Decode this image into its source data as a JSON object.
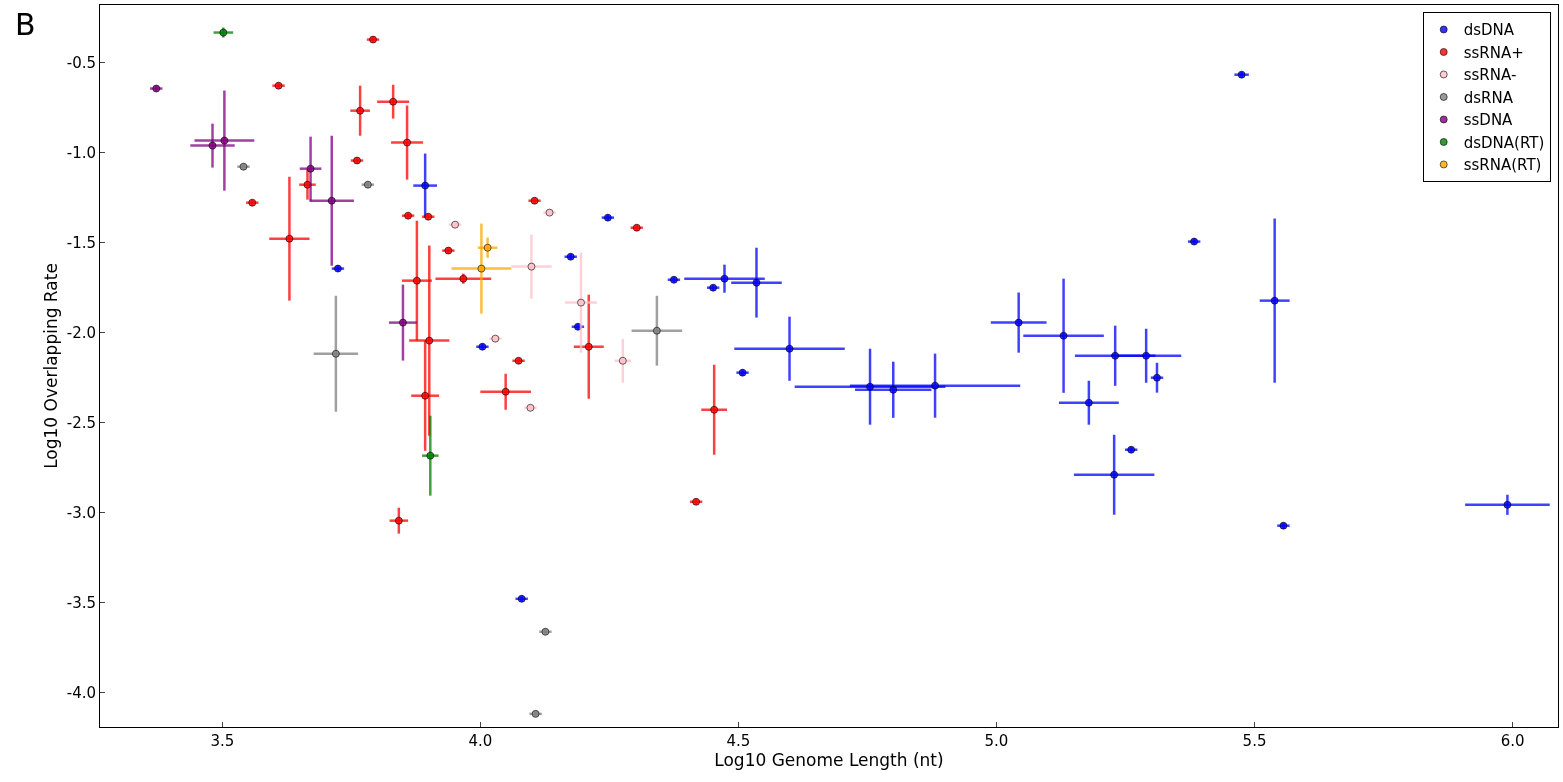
{
  "chart_data": {
    "type": "scatter",
    "xlabel": "Log10 Genome Length (nt)",
    "ylabel": "Log10 Overlapping Rate",
    "annotations": [
      "B"
    ],
    "xlim": [
      3.263,
      6.088
    ],
    "ylim": [
      -4.19,
      -0.18
    ],
    "xticks": [
      3.5,
      {
        "value": 4,
        "label": "4.0"
      },
      4.5,
      {
        "value": 5,
        "label": "5.0"
      },
      5.5,
      {
        "value": 6,
        "label": "6.0"
      }
    ],
    "yticks": [
      {
        "value": -4,
        "label": "-4.0"
      },
      -3.5,
      {
        "value": -3,
        "label": "-3.0"
      },
      -2.5,
      {
        "value": -2,
        "label": "-2.0"
      },
      -1.5,
      {
        "value": -1,
        "label": "-1.0"
      },
      -0.5
    ],
    "legend": "top right",
    "marker": "circle",
    "series": [
      {
        "name": "dsDNA",
        "color": "#0000ff",
        "x": [
          5.475,
          3.893,
          4.473,
          4.535,
          4.599,
          4.755,
          4.881,
          4.8,
          5.043,
          5.13,
          5.179,
          5.23,
          5.29,
          5.228,
          5.539,
          5.99,
          5.383,
          5.556,
          4.08,
          4.004,
          4.247,
          4.375,
          4.175,
          4.189,
          4.508,
          5.311,
          5.261,
          3.724,
          4.451
        ],
        "values": [
          -0.567,
          -1.183,
          -1.7,
          -1.722,
          -2.089,
          -2.3,
          -2.294,
          -2.317,
          -1.944,
          -2.017,
          -2.389,
          -2.128,
          -2.128,
          -2.789,
          -1.822,
          -2.956,
          -1.494,
          -3.072,
          -3.478,
          -2.078,
          -1.361,
          -1.706,
          -1.578,
          -1.967,
          -2.222,
          -2.25,
          -2.65,
          -1.644,
          -1.75
        ],
        "xerrors": [
          0.014,
          0.023,
          0.078,
          0.049,
          0.107,
          0.146,
          0.165,
          0.074,
          0.054,
          0.078,
          0.058,
          0.078,
          0.068,
          0.078,
          0.029,
          0.082,
          0.012,
          0.012,
          0.012,
          0.012,
          0.012,
          0.012,
          0.012,
          0.012,
          0.012,
          0.012,
          0.012,
          0.012,
          0.012
        ],
        "errors": [
          0.017,
          0.178,
          0.078,
          0.194,
          0.178,
          0.211,
          0.178,
          0.156,
          0.167,
          0.317,
          0.122,
          0.167,
          0.15,
          0.222,
          0.456,
          0.056,
          0.017,
          0.017,
          0.017,
          0.017,
          0.017,
          0.017,
          0.017,
          0.017,
          0.017,
          0.083,
          0.017,
          0.017,
          0.017
        ]
      },
      {
        "name": "ssRNA+",
        "color": "#ff0000",
        "x": [
          3.792,
          3.609,
          3.767,
          3.831,
          3.858,
          3.761,
          3.558,
          3.63,
          3.665,
          3.86,
          3.899,
          3.877,
          3.901,
          3.893,
          3.938,
          3.967,
          4.049,
          4.105,
          4.074,
          4.303,
          4.21,
          4.453,
          4.418,
          3.842
        ],
        "values": [
          -0.372,
          -0.628,
          -0.767,
          -0.717,
          -0.944,
          -1.044,
          -1.278,
          -1.478,
          -1.178,
          -1.35,
          -1.356,
          -1.711,
          -2.044,
          -2.35,
          -1.544,
          -1.7,
          -2.328,
          -1.267,
          -2.156,
          -1.417,
          -2.078,
          -2.428,
          -2.939,
          -3.044
        ],
        "xerrors": [
          0.012,
          0.012,
          0.019,
          0.031,
          0.031,
          0.012,
          0.012,
          0.039,
          0.016,
          0.012,
          0.012,
          0.029,
          0.039,
          0.027,
          0.012,
          0.054,
          0.049,
          0.012,
          0.012,
          0.012,
          0.029,
          0.025,
          0.012,
          0.018
        ],
        "errors": [
          0.017,
          0.017,
          0.139,
          0.094,
          0.206,
          0.017,
          0.017,
          0.344,
          0.083,
          0.017,
          0.017,
          0.333,
          0.528,
          0.306,
          0.017,
          0.028,
          0.1,
          0.017,
          0.017,
          0.017,
          0.289,
          0.25,
          0.017,
          0.072
        ]
      },
      {
        "name": "ssRNA-",
        "color": "#ffc0cb",
        "x": [
          3.951,
          4.134,
          4.099,
          4.195,
          4.276,
          4.029,
          4.097
        ],
        "values": [
          -1.4,
          -1.333,
          -1.633,
          -1.833,
          -2.156,
          -2.033,
          -2.417
        ],
        "xerrors": [
          0.012,
          0.012,
          0.039,
          0.031,
          0.016,
          0.012,
          0.012
        ],
        "errors": [
          0.017,
          0.017,
          0.178,
          0.278,
          0.122,
          0.017,
          0.017
        ]
      },
      {
        "name": "dsRNA",
        "color": "#808080",
        "x": [
          3.541,
          3.782,
          3.72,
          4.342,
          4.126,
          4.107
        ],
        "values": [
          -1.078,
          -1.178,
          -2.117,
          -1.989,
          -3.661,
          -4.117
        ],
        "xerrors": [
          0.012,
          0.012,
          0.043,
          0.049,
          0.012,
          0.012
        ],
        "errors": [
          0.017,
          0.017,
          0.322,
          0.194,
          0.017,
          0.017
        ]
      },
      {
        "name": "ssDNA",
        "color": "#800080",
        "x": [
          3.372,
          3.504,
          3.481,
          3.671,
          3.712,
          3.85
        ],
        "values": [
          -0.644,
          -0.933,
          -0.961,
          -1.089,
          -1.267,
          -1.944
        ],
        "xerrors": [
          0.012,
          0.058,
          0.043,
          0.021,
          0.043,
          0.027
        ],
        "errors": [
          0.017,
          0.278,
          0.122,
          0.178,
          0.361,
          0.211
        ]
      },
      {
        "name": "dsDNA(RT)",
        "color": "#008000",
        "x": [
          3.502,
          3.903
        ],
        "values": [
          -0.333,
          -2.683
        ],
        "xerrors": [
          0.019,
          0.016
        ],
        "errors": [
          0.028,
          0.222
        ]
      },
      {
        "name": "ssRNA(RT)",
        "color": "#ffa500",
        "x": [
          4.002,
          4.014
        ],
        "values": [
          -1.644,
          -1.528
        ],
        "xerrors": [
          0.058,
          0.019
        ],
        "errors": [
          0.25,
          0.056
        ]
      }
    ]
  }
}
